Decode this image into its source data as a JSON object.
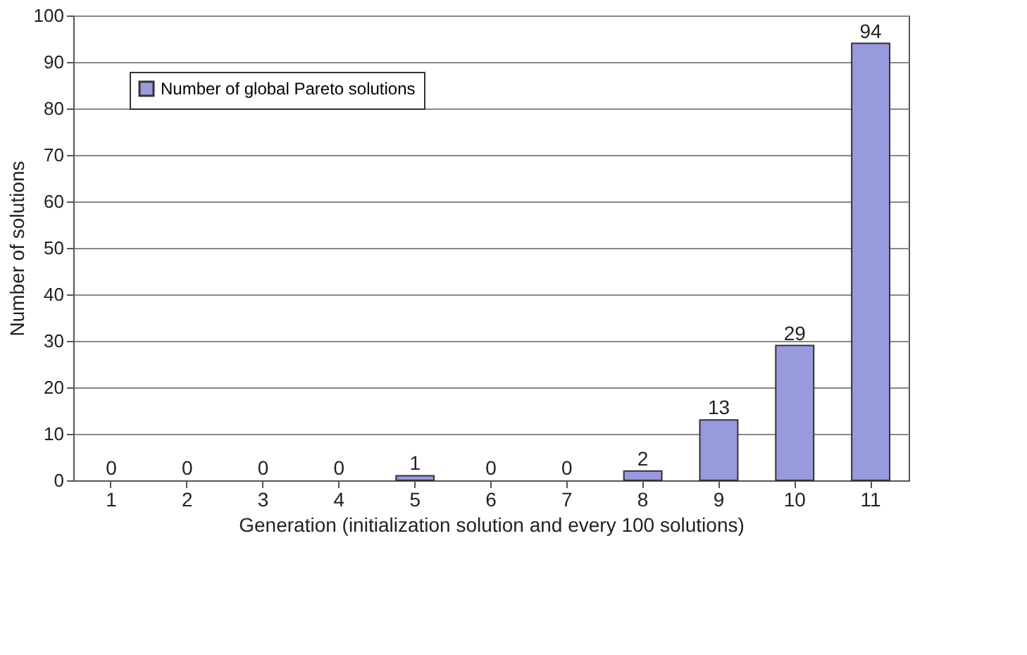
{
  "chart_data": {
    "type": "bar",
    "xlabel": "Generation (initialization solution and every 100 solutions)",
    "ylabel": "Number of solutions",
    "categories": [
      "1",
      "2",
      "3",
      "4",
      "5",
      "6",
      "7",
      "8",
      "9",
      "10",
      "11"
    ],
    "series": [
      {
        "name": "Number of global Pareto solutions",
        "color": "#9999dd",
        "values": [
          0,
          0,
          0,
          0,
          1,
          0,
          0,
          2,
          13,
          29,
          94
        ]
      }
    ],
    "ylim": [
      0,
      100
    ],
    "yticks": [
      0,
      10,
      20,
      30,
      40,
      50,
      60,
      70,
      80,
      90,
      100
    ],
    "grid": "y",
    "legend": "top left",
    "data_labels": true
  }
}
